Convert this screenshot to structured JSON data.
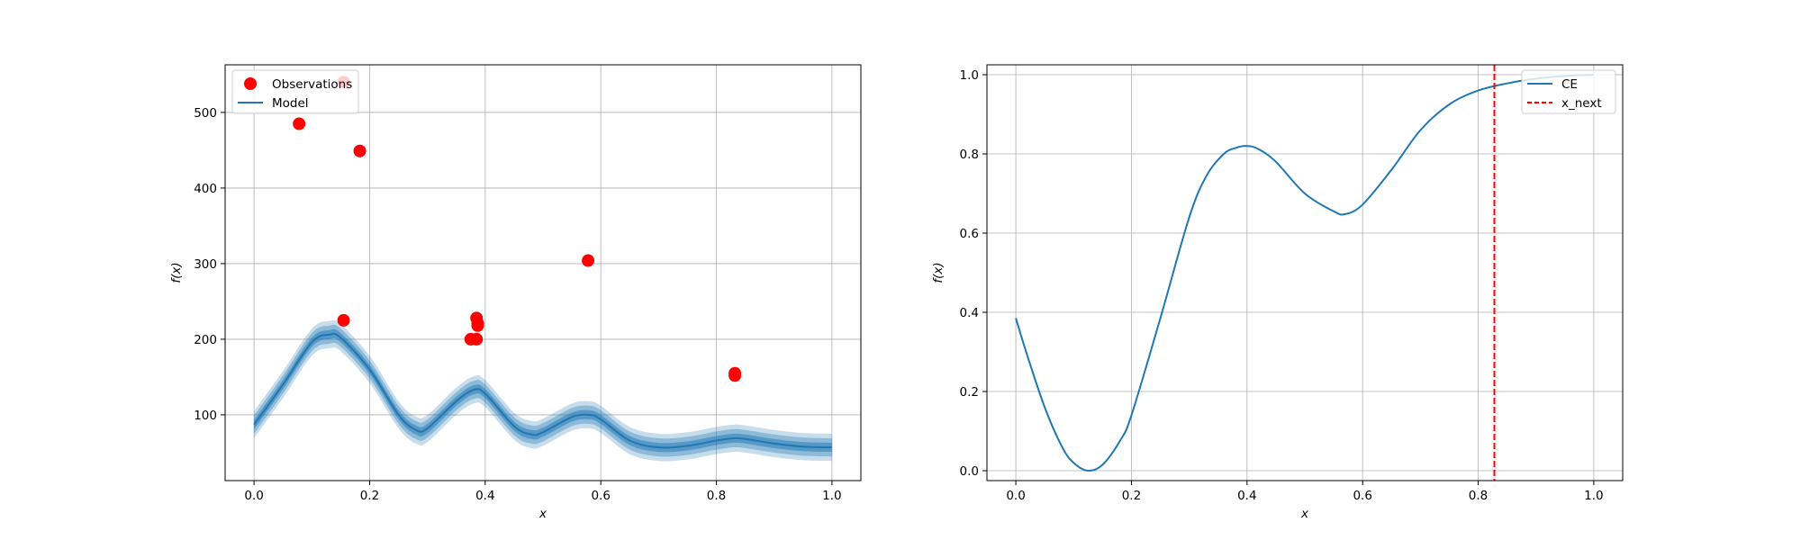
{
  "chart_data": [
    {
      "type": "line",
      "xlabel": "x",
      "ylabel": "f(x)",
      "xlim": [
        -0.05,
        1.05
      ],
      "ylim": [
        13,
        563
      ],
      "xticks": [
        "0.0",
        "0.2",
        "0.4",
        "0.6",
        "0.8",
        "1.0"
      ],
      "xtick_values": [
        0.0,
        0.2,
        0.4,
        0.6,
        0.8,
        1.0
      ],
      "yticks": [
        "100",
        "200",
        "300",
        "400",
        "500"
      ],
      "ytick_values": [
        100,
        200,
        300,
        400,
        500
      ],
      "grid": true,
      "legend_position": "top-left",
      "colors": {
        "observations": "#ff0000",
        "model": "#1f77b4",
        "band": "#1f77b4"
      },
      "legend": [
        {
          "label": "Observations",
          "kind": "marker",
          "color": "#ff0000"
        },
        {
          "label": "Model",
          "kind": "line",
          "color": "#1f77b4"
        }
      ],
      "observations": {
        "name": "Observations",
        "x": [
          0.078,
          0.155,
          0.155,
          0.183,
          0.375,
          0.385,
          0.385,
          0.387,
          0.387,
          0.578,
          0.832,
          0.832
        ],
        "y": [
          485,
          540,
          225,
          449,
          200,
          200,
          228,
          221,
          218,
          304,
          155,
          152
        ]
      },
      "model": {
        "name": "Model",
        "x": [
          0.0,
          0.05,
          0.1,
          0.13,
          0.15,
          0.2,
          0.25,
          0.28,
          0.3,
          0.35,
          0.38,
          0.4,
          0.45,
          0.48,
          0.5,
          0.55,
          0.58,
          0.6,
          0.65,
          0.7,
          0.75,
          0.8,
          0.83,
          0.85,
          0.9,
          0.95,
          1.0
        ],
        "mean": [
          87,
          140,
          196,
          206,
          202,
          160,
          100,
          80,
          82,
          118,
          133,
          128,
          85,
          74,
          77,
          97,
          100,
          94,
          66,
          57,
          59,
          66,
          69,
          68,
          62,
          58,
          57
        ],
        "band_widths": [
          6,
          12,
          18
        ]
      }
    },
    {
      "type": "line",
      "xlabel": "x",
      "ylabel": "f(x)",
      "xlim": [
        -0.05,
        1.05
      ],
      "ylim": [
        -0.025,
        1.025
      ],
      "xticks": [
        "0.0",
        "0.2",
        "0.4",
        "0.6",
        "0.8",
        "1.0"
      ],
      "xtick_values": [
        0.0,
        0.2,
        0.4,
        0.6,
        0.8,
        1.0
      ],
      "yticks": [
        "0.0",
        "0.2",
        "0.4",
        "0.6",
        "0.8",
        "1.0"
      ],
      "ytick_values": [
        0.0,
        0.2,
        0.4,
        0.6,
        0.8,
        1.0
      ],
      "grid": true,
      "legend_position": "top-right",
      "colors": {
        "ce": "#1f77b4",
        "x_next": "#ff0000"
      },
      "legend": [
        {
          "label": "CE",
          "kind": "line",
          "color": "#1f77b4"
        },
        {
          "label": "x_next",
          "kind": "dashed",
          "color": "#ff0000"
        }
      ],
      "series": [
        {
          "name": "CE",
          "x": [
            0.0,
            0.02,
            0.05,
            0.08,
            0.1,
            0.125,
            0.15,
            0.18,
            0.2,
            0.25,
            0.3,
            0.33,
            0.36,
            0.38,
            0.4,
            0.42,
            0.45,
            0.5,
            0.55,
            0.57,
            0.6,
            0.65,
            0.7,
            0.75,
            0.8,
            0.85,
            0.9,
            0.95,
            1.0
          ],
          "y": [
            0.385,
            0.29,
            0.16,
            0.06,
            0.02,
            0.0,
            0.015,
            0.075,
            0.14,
            0.385,
            0.64,
            0.745,
            0.8,
            0.815,
            0.82,
            0.812,
            0.78,
            0.7,
            0.655,
            0.648,
            0.672,
            0.76,
            0.86,
            0.925,
            0.96,
            0.978,
            0.99,
            0.997,
            1.0
          ]
        }
      ],
      "vline": {
        "name": "x_next",
        "x": 0.828,
        "style": "dashed"
      }
    }
  ]
}
